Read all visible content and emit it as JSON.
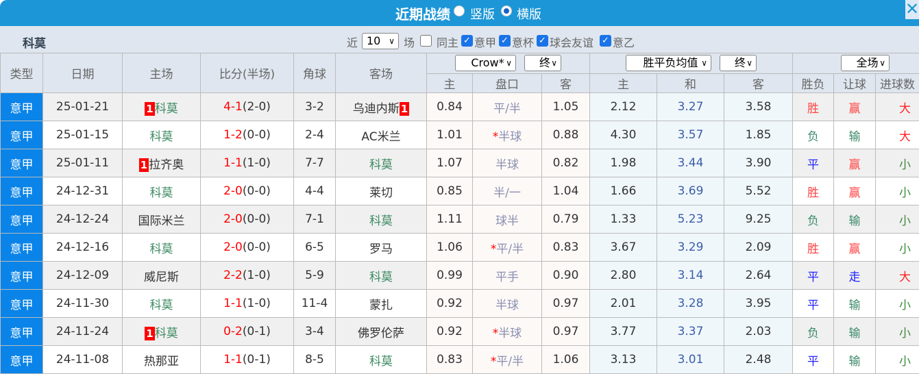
{
  "title": "近期战绩",
  "view_options": [
    {
      "label": "竖版",
      "selected": false
    },
    {
      "label": "横版",
      "selected": true
    }
  ],
  "close_icon": "close-icon",
  "filter": {
    "team": "科莫",
    "near_label": "近",
    "count": "10",
    "games_label": "场",
    "checkboxes": [
      {
        "label": "同主",
        "checked": false
      },
      {
        "label": "意甲",
        "checked": true
      },
      {
        "label": "意杯",
        "checked": true
      },
      {
        "label": "球会友谊",
        "checked": true
      },
      {
        "label": "意乙",
        "checked": true
      }
    ]
  },
  "headers": {
    "type": "类型",
    "date": "日期",
    "home": "主场",
    "score": "比分(半场)",
    "corner": "角球",
    "away": "客场",
    "company": "Crow*",
    "company_phase": "终",
    "euro": "胜平负均值",
    "euro_phase": "终",
    "period": "全场",
    "sub": [
      "主",
      "盘口",
      "客",
      "主",
      "和",
      "客",
      "胜负",
      "让球",
      "进球数"
    ]
  },
  "rows": [
    {
      "type": "意甲",
      "date": "25-01-21",
      "home": "科莫",
      "home_rank": "1",
      "score": "4-1",
      "half": "(2-0)",
      "corner": "3-2",
      "away": "乌迪内斯",
      "away_rank": "1",
      "oh": "0.84",
      "line": "平/半",
      "star": false,
      "oa": "1.05",
      "eh": "2.12",
      "ed": "3.27",
      "ea": "3.58",
      "result": "胜",
      "handicap": "赢",
      "goals": "大"
    },
    {
      "type": "意甲",
      "date": "25-01-15",
      "home": "科莫",
      "home_rank": "",
      "score": "1-2",
      "half": "(0-0)",
      "corner": "2-4",
      "away": "AC米兰",
      "away_rank": "",
      "oh": "1.01",
      "line": "半球",
      "star": true,
      "oa": "0.88",
      "eh": "4.30",
      "ed": "3.57",
      "ea": "1.85",
      "result": "负",
      "handicap": "输",
      "goals": "大"
    },
    {
      "type": "意甲",
      "date": "25-01-11",
      "home": "拉齐奥",
      "home_rank": "1",
      "score": "1-1",
      "half": "(1-0)",
      "corner": "7-7",
      "away": "科莫",
      "away_rank": "",
      "oh": "1.07",
      "line": "半球",
      "star": false,
      "oa": "0.82",
      "eh": "1.98",
      "ed": "3.44",
      "ea": "3.90",
      "result": "平",
      "handicap": "赢",
      "goals": "小"
    },
    {
      "type": "意甲",
      "date": "24-12-31",
      "home": "科莫",
      "home_rank": "",
      "score": "2-0",
      "half": "(0-0)",
      "corner": "4-4",
      "away": "莱切",
      "away_rank": "",
      "oh": "0.85",
      "line": "半/一",
      "star": false,
      "oa": "1.04",
      "eh": "1.66",
      "ed": "3.69",
      "ea": "5.52",
      "result": "胜",
      "handicap": "赢",
      "goals": "小"
    },
    {
      "type": "意甲",
      "date": "24-12-24",
      "home": "国际米兰",
      "home_rank": "",
      "score": "2-0",
      "half": "(0-0)",
      "corner": "7-1",
      "away": "科莫",
      "away_rank": "",
      "oh": "1.11",
      "line": "球半",
      "star": false,
      "oa": "0.79",
      "eh": "1.33",
      "ed": "5.23",
      "ea": "9.25",
      "result": "负",
      "handicap": "输",
      "goals": "小"
    },
    {
      "type": "意甲",
      "date": "24-12-16",
      "home": "科莫",
      "home_rank": "",
      "score": "2-0",
      "half": "(0-0)",
      "corner": "6-5",
      "away": "罗马",
      "away_rank": "",
      "oh": "1.06",
      "line": "平/半",
      "star": true,
      "oa": "0.83",
      "eh": "3.67",
      "ed": "3.29",
      "ea": "2.09",
      "result": "胜",
      "handicap": "赢",
      "goals": "小"
    },
    {
      "type": "意甲",
      "date": "24-12-09",
      "home": "威尼斯",
      "home_rank": "",
      "score": "2-2",
      "half": "(1-0)",
      "corner": "5-9",
      "away": "科莫",
      "away_rank": "",
      "oh": "0.99",
      "line": "平手",
      "star": false,
      "oa": "0.90",
      "eh": "2.80",
      "ed": "3.14",
      "ea": "2.64",
      "result": "平",
      "handicap": "走",
      "goals": "大"
    },
    {
      "type": "意甲",
      "date": "24-11-30",
      "home": "科莫",
      "home_rank": "",
      "score": "1-1",
      "half": "(1-0)",
      "corner": "11-4",
      "away": "蒙扎",
      "away_rank": "",
      "oh": "0.92",
      "line": "半球",
      "star": false,
      "oa": "0.97",
      "eh": "2.01",
      "ed": "3.28",
      "ea": "3.95",
      "result": "平",
      "handicap": "输",
      "goals": "小"
    },
    {
      "type": "意甲",
      "date": "24-11-24",
      "home": "科莫",
      "home_rank": "1",
      "score": "0-2",
      "half": "(0-1)",
      "corner": "3-4",
      "away": "佛罗伦萨",
      "away_rank": "",
      "oh": "0.92",
      "line": "半球",
      "star": true,
      "oa": "0.97",
      "eh": "3.77",
      "ed": "3.37",
      "ea": "2.03",
      "result": "负",
      "handicap": "输",
      "goals": "小"
    },
    {
      "type": "意甲",
      "date": "24-11-08",
      "home": "热那亚",
      "home_rank": "",
      "score": "1-1",
      "half": "(0-1)",
      "corner": "8-5",
      "away": "科莫",
      "away_rank": "",
      "oh": "0.83",
      "line": "平/半",
      "star": true,
      "oa": "1.06",
      "eh": "3.13",
      "ed": "3.01",
      "ea": "2.48",
      "result": "平",
      "handicap": "输",
      "goals": "小"
    }
  ]
}
